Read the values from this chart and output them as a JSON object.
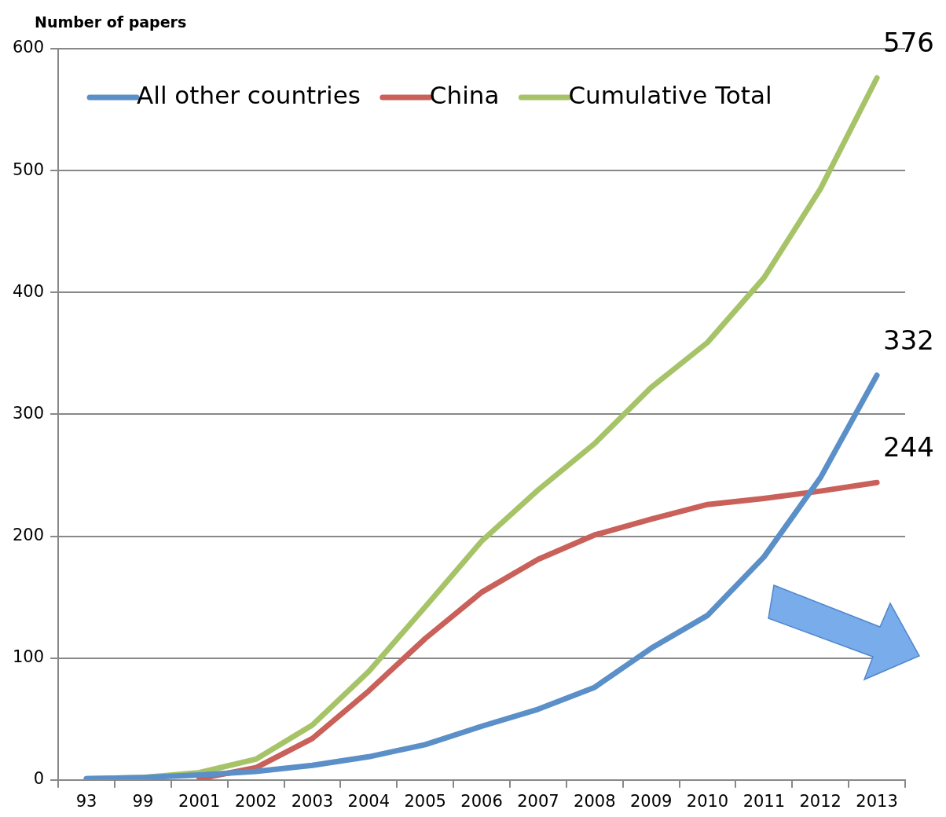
{
  "chart_data": {
    "type": "line",
    "ylabel": "Number of papers",
    "categories": [
      "93",
      "99",
      "2001",
      "2002",
      "2003",
      "2004",
      "2005",
      "2006",
      "2007",
      "2008",
      "2009",
      "2010",
      "2011",
      "2012",
      "2013"
    ],
    "series": [
      {
        "name": "All other countries",
        "color": "#5b8fc8",
        "values": [
          1,
          2,
          4,
          7,
          12,
          19,
          29,
          44,
          58,
          76,
          108,
          135,
          183,
          248,
          332
        ],
        "value_labels": [
          null,
          null,
          null,
          null,
          null,
          null,
          null,
          null,
          null,
          null,
          null,
          null,
          null,
          null,
          "332"
        ]
      },
      {
        "name": "China",
        "color": "#c9605a",
        "values": [
          null,
          null,
          1,
          10,
          34,
          73,
          116,
          154,
          181,
          201,
          214,
          226,
          231,
          237,
          244
        ],
        "value_labels": [
          null,
          null,
          null,
          null,
          null,
          null,
          null,
          null,
          null,
          null,
          null,
          null,
          null,
          null,
          "244"
        ]
      },
      {
        "name": "Cumulative Total",
        "color": "#a6c467",
        "values": [
          1,
          2,
          6,
          17,
          45,
          89,
          142,
          196,
          238,
          276,
          322,
          359,
          412,
          485,
          576
        ],
        "value_labels": [
          null,
          null,
          null,
          null,
          null,
          null,
          null,
          null,
          null,
          null,
          null,
          null,
          null,
          null,
          "576"
        ]
      }
    ],
    "ylim": [
      0,
      600
    ],
    "yticks": [
      0,
      100,
      200,
      300,
      400,
      500,
      600
    ],
    "grid": "y",
    "legend": "top left",
    "marker": "none",
    "line_style": "solid"
  }
}
